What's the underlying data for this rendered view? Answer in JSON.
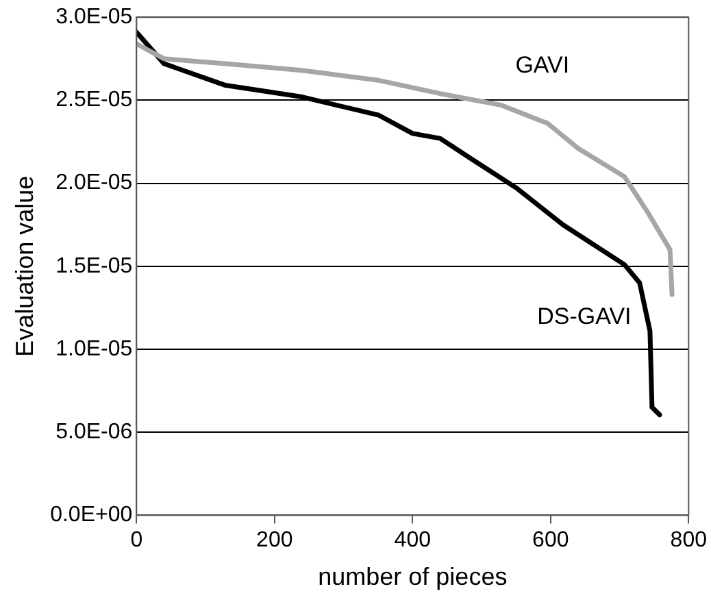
{
  "chart_data": {
    "type": "line",
    "xlabel": "number of pieces",
    "ylabel": "Evaluation value",
    "xlim": [
      0,
      800
    ],
    "xticks": [
      0,
      200,
      400,
      600,
      800
    ],
    "ylim": [
      0,
      3e-05
    ],
    "yticks": [
      {
        "value": 0,
        "label": "0.0E+00"
      },
      {
        "value": 5e-06,
        "label": "5.0E-06"
      },
      {
        "value": 1e-05,
        "label": "1.0E-05"
      },
      {
        "value": 1.5e-05,
        "label": "1.5E-05"
      },
      {
        "value": 2e-05,
        "label": "2.0E-05"
      },
      {
        "value": 2.5e-05,
        "label": "2.5E-05"
      },
      {
        "value": 3e-05,
        "label": "3.0E-05"
      }
    ],
    "grid": "y",
    "legend": false,
    "marker": "none",
    "line_style": "solid",
    "series": [
      {
        "name": "GAVI",
        "color": "#a6a6a6",
        "x": [
          0,
          40,
          129,
          240,
          351,
          418,
          440,
          529,
          596,
          640,
          707,
          740,
          773,
          776
        ],
        "values": [
          2.84e-05,
          2.75e-05,
          2.72e-05,
          2.68e-05,
          2.62e-05,
          2.56e-05,
          2.54e-05,
          2.47e-05,
          2.36e-05,
          2.21e-05,
          2.04e-05,
          1.83e-05,
          1.6e-05,
          1.33e-05
        ]
      },
      {
        "name": "DS-GAVI",
        "color": "#000000",
        "x": [
          0,
          40,
          129,
          240,
          351,
          400,
          440,
          484,
          551,
          618,
          707,
          729,
          744,
          747,
          758
        ],
        "values": [
          2.91e-05,
          2.72e-05,
          2.59e-05,
          2.52e-05,
          2.41e-05,
          2.3e-05,
          2.27e-05,
          2.15e-05,
          1.97e-05,
          1.75e-05,
          1.51e-05,
          1.4e-05,
          1.11e-05,
          6.5e-06,
          6.05e-06
        ]
      }
    ]
  }
}
